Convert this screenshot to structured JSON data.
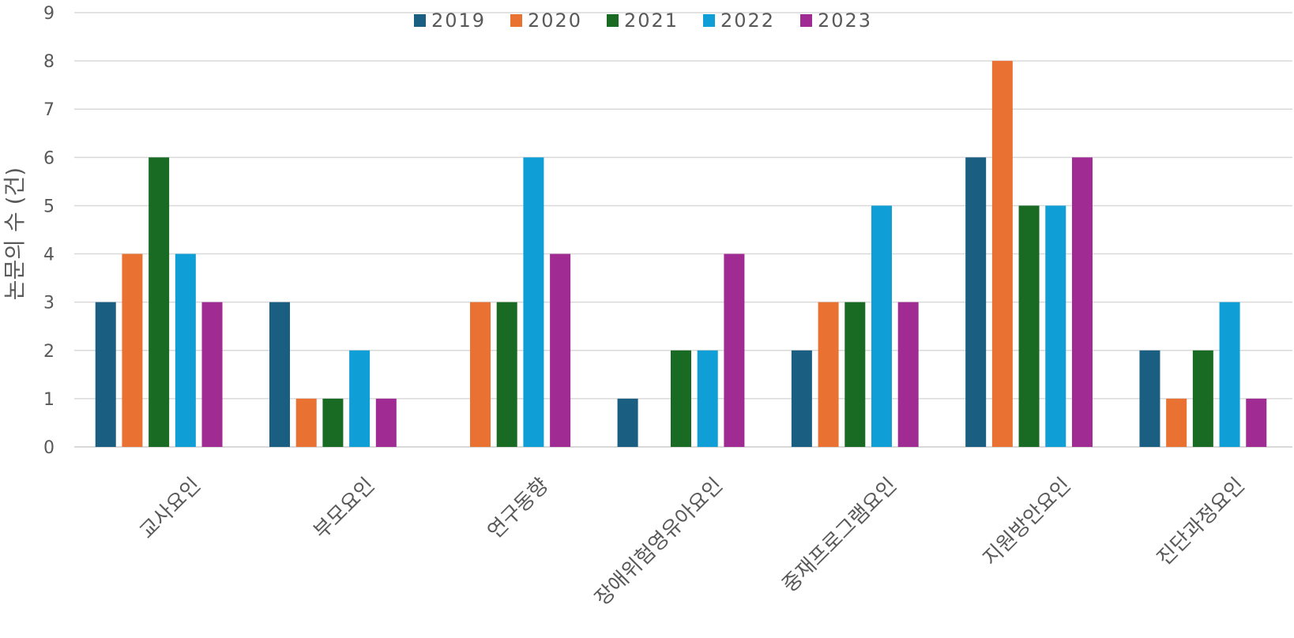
{
  "chart_data": {
    "type": "bar",
    "ylabel": "논문의 수 (건)",
    "ylim": [
      0,
      9
    ],
    "yticks": [
      "0",
      "1",
      "2",
      "3",
      "4",
      "5",
      "6",
      "7",
      "8",
      "9"
    ],
    "grid": true,
    "legend_position": "top",
    "categories": [
      "교사요인",
      "부모요인",
      "연구동향",
      "장애위험영유아요인",
      "중재프로그램요인",
      "지원방안요인",
      "진단과정요인"
    ],
    "series": [
      {
        "name": "2019",
        "color": "#1a5e82",
        "values": [
          3,
          3,
          0,
          1,
          2,
          6,
          2
        ]
      },
      {
        "name": "2020",
        "color": "#e97132",
        "values": [
          4,
          1,
          3,
          0,
          3,
          8,
          1
        ]
      },
      {
        "name": "2021",
        "color": "#196b24",
        "values": [
          6,
          1,
          3,
          2,
          3,
          5,
          2
        ]
      },
      {
        "name": "2022",
        "color": "#0f9ed5",
        "values": [
          4,
          2,
          6,
          2,
          5,
          5,
          3
        ]
      },
      {
        "name": "2023",
        "color": "#a02b93",
        "values": [
          3,
          1,
          4,
          4,
          3,
          6,
          1
        ]
      }
    ]
  }
}
